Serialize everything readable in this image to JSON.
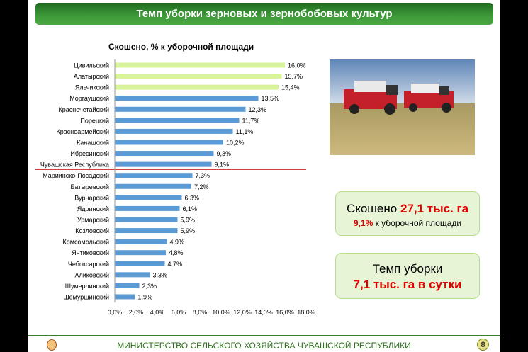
{
  "header": {
    "title": "Темп уборки зерновых и зернобобовых культур"
  },
  "colors": {
    "highlight_bar": "#d9f39a",
    "bar": "#5b9bd5",
    "reference_line": "#c00000",
    "header": "#3f9a3a"
  },
  "chart_data": {
    "type": "bar",
    "orientation": "horizontal",
    "title": "Скошено, % к уборочной площади",
    "categories": [
      "Цивильский",
      "Алатырский",
      "Яльчикский",
      "Моргаушский",
      "Красночетайский",
      "Порецкий",
      "Красноармейский",
      "Канашский",
      "Ибресинский",
      "Чувашская Республика",
      "Мариинско-Посадский",
      "Батыревский",
      "Вурнарский",
      "Ядринский",
      "Урмарский",
      "Козловский",
      "Комсомольский",
      "Янтиковский",
      "Чебоксарский",
      "Аликовский",
      "Шумерлинский",
      "Шемуршинский"
    ],
    "values": [
      16.0,
      15.7,
      15.4,
      13.5,
      12.3,
      11.7,
      11.1,
      10.2,
      9.3,
      9.1,
      7.3,
      7.2,
      6.3,
      6.1,
      5.9,
      5.9,
      4.9,
      4.8,
      4.7,
      3.3,
      2.3,
      1.9
    ],
    "value_labels": [
      "16,0%",
      "15,7%",
      "15,4%",
      "13,5%",
      "12,3%",
      "11,7%",
      "11,1%",
      "10,2%",
      "9,3%",
      "9,1%",
      "7,3%",
      "7,2%",
      "6,3%",
      "6,1%",
      "5,9%",
      "5,9%",
      "4,9%",
      "4,8%",
      "4,7%",
      "3,3%",
      "2,3%",
      "1,9%"
    ],
    "highlighted": [
      0,
      1,
      2
    ],
    "reference_category": "Чувашская Республика",
    "xlim": [
      0,
      18
    ],
    "xticks": [
      "0,0%",
      "2,0%",
      "4,0%",
      "6,0%",
      "8,0%",
      "10,0%",
      "12,0%",
      "14,0%",
      "16,0%",
      "18,0%"
    ],
    "grid": false
  },
  "box1": {
    "prefix": "Скошено ",
    "value": "27,1 тыс. га",
    "pct": "9,1%",
    "suffix": " к уборочной площади"
  },
  "box2": {
    "line1": "Темп уборки",
    "line2": "7,1 тыс. га в сутки"
  },
  "footer": {
    "text": "МИНИСТЕРСТВО СЕЛЬСКОГО ХОЗЯЙСТВА ЧУВАШСКОЙ РЕСПУБЛИКИ",
    "page": "8"
  }
}
